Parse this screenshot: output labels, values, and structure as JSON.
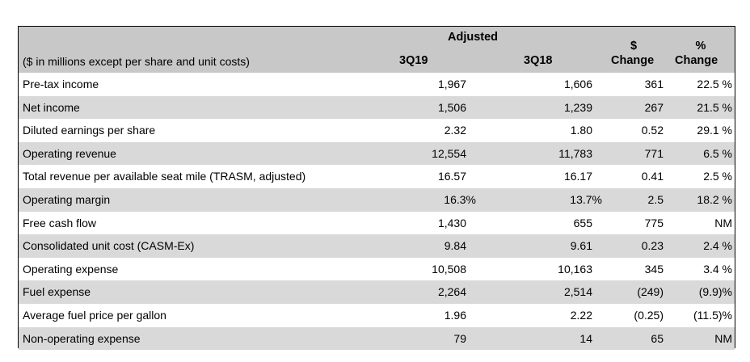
{
  "table": {
    "header": {
      "group_label": "Adjusted",
      "subtitle": "($ in millions except per share and unit costs)",
      "col_3q19": "3Q19",
      "col_3q18": "3Q18",
      "col_dollar_top": "$",
      "col_dollar_bottom": "Change",
      "col_pct_top": "%",
      "col_pct_bottom": "Change"
    },
    "rows": [
      {
        "label": "Pre-tax income",
        "q19": "1,967",
        "q18": "1,606",
        "dollar": "361",
        "pct": "22.5 %"
      },
      {
        "label": "Net income",
        "q19": "1,506",
        "q18": "1,239",
        "dollar": "267",
        "pct": "21.5 %"
      },
      {
        "label": "Diluted earnings per share",
        "q19": "2.32",
        "q18": "1.80",
        "dollar": "0.52",
        "pct": "29.1 %"
      },
      {
        "label": "Operating revenue",
        "q19": "12,554",
        "q18": "11,783",
        "dollar": "771",
        "pct": "6.5 %"
      },
      {
        "label": "Total revenue per available seat mile (TRASM, adjusted)",
        "q19": "16.57",
        "q18": "16.17",
        "dollar": "0.41",
        "pct": "2.5 %"
      },
      {
        "label": "Operating margin",
        "q19": "16.3%",
        "q18": "13.7%",
        "dollar": "2.5",
        "pct": "18.2 %"
      },
      {
        "label": "Free cash flow",
        "q19": "1,430",
        "q18": "655",
        "dollar": "775",
        "pct": "NM"
      },
      {
        "label": "Consolidated unit cost (CASM-Ex)",
        "q19": "9.84",
        "q18": "9.61",
        "dollar": "0.23",
        "pct": "2.4 %"
      },
      {
        "label": "Operating expense",
        "q19": "10,508",
        "q18": "10,163",
        "dollar": "345",
        "pct": "3.4 %"
      },
      {
        "label": "Fuel expense",
        "q19": "2,264",
        "q18": "2,514",
        "dollar": "(249)",
        "pct": "(9.9)%"
      },
      {
        "label": "Average fuel price per gallon",
        "q19": "1.96",
        "q18": "2.22",
        "dollar": "(0.25)",
        "pct": "(11.5)%"
      },
      {
        "label": "Non-operating expense",
        "q19": "79",
        "q18": "14",
        "dollar": "65",
        "pct": "NM"
      }
    ]
  }
}
